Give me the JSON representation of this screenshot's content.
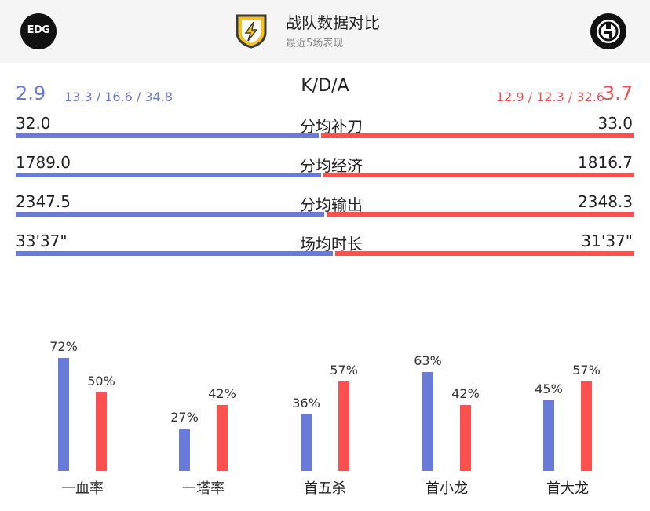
{
  "header": {
    "title": "战队数据对比",
    "subtitle": "最近5场表现",
    "left_team_logo": "EDG",
    "right_team_logo": "iG"
  },
  "kda": {
    "label": "K/D/A",
    "left_value": "2.9",
    "left_detail": "13.3 / 16.6 / 34.8",
    "right_value": "3.7",
    "right_detail": "12.9 / 12.3 / 32.6"
  },
  "stats": [
    {
      "label": "分均补刀",
      "left": "32.0",
      "right": "33.0",
      "left_share": 0.492
    },
    {
      "label": "分均经济",
      "left": "1789.0",
      "right": "1816.7",
      "left_share": 0.496
    },
    {
      "label": "分均输出",
      "left": "2347.5",
      "right": "2348.3",
      "left_share": 0.5
    },
    {
      "label": "场均时长",
      "left": "33'37\"",
      "right": "31'37\"",
      "left_share": 0.515
    }
  ],
  "colors": {
    "left_team": "#6a7ad8",
    "right_team": "#ff5050"
  },
  "chart_data": {
    "type": "bar",
    "categories": [
      "一血率",
      "一塔率",
      "首五杀",
      "首小龙",
      "首大龙"
    ],
    "series": [
      {
        "values": [
          72,
          27,
          36,
          63,
          45
        ],
        "labels": [
          "72%",
          "27%",
          "36%",
          "63%",
          "45%"
        ]
      },
      {
        "values": [
          50,
          42,
          57,
          42,
          57
        ],
        "labels": [
          "50%",
          "42%",
          "57%",
          "42%",
          "57%"
        ]
      }
    ],
    "ylim": [
      0,
      100
    ]
  }
}
